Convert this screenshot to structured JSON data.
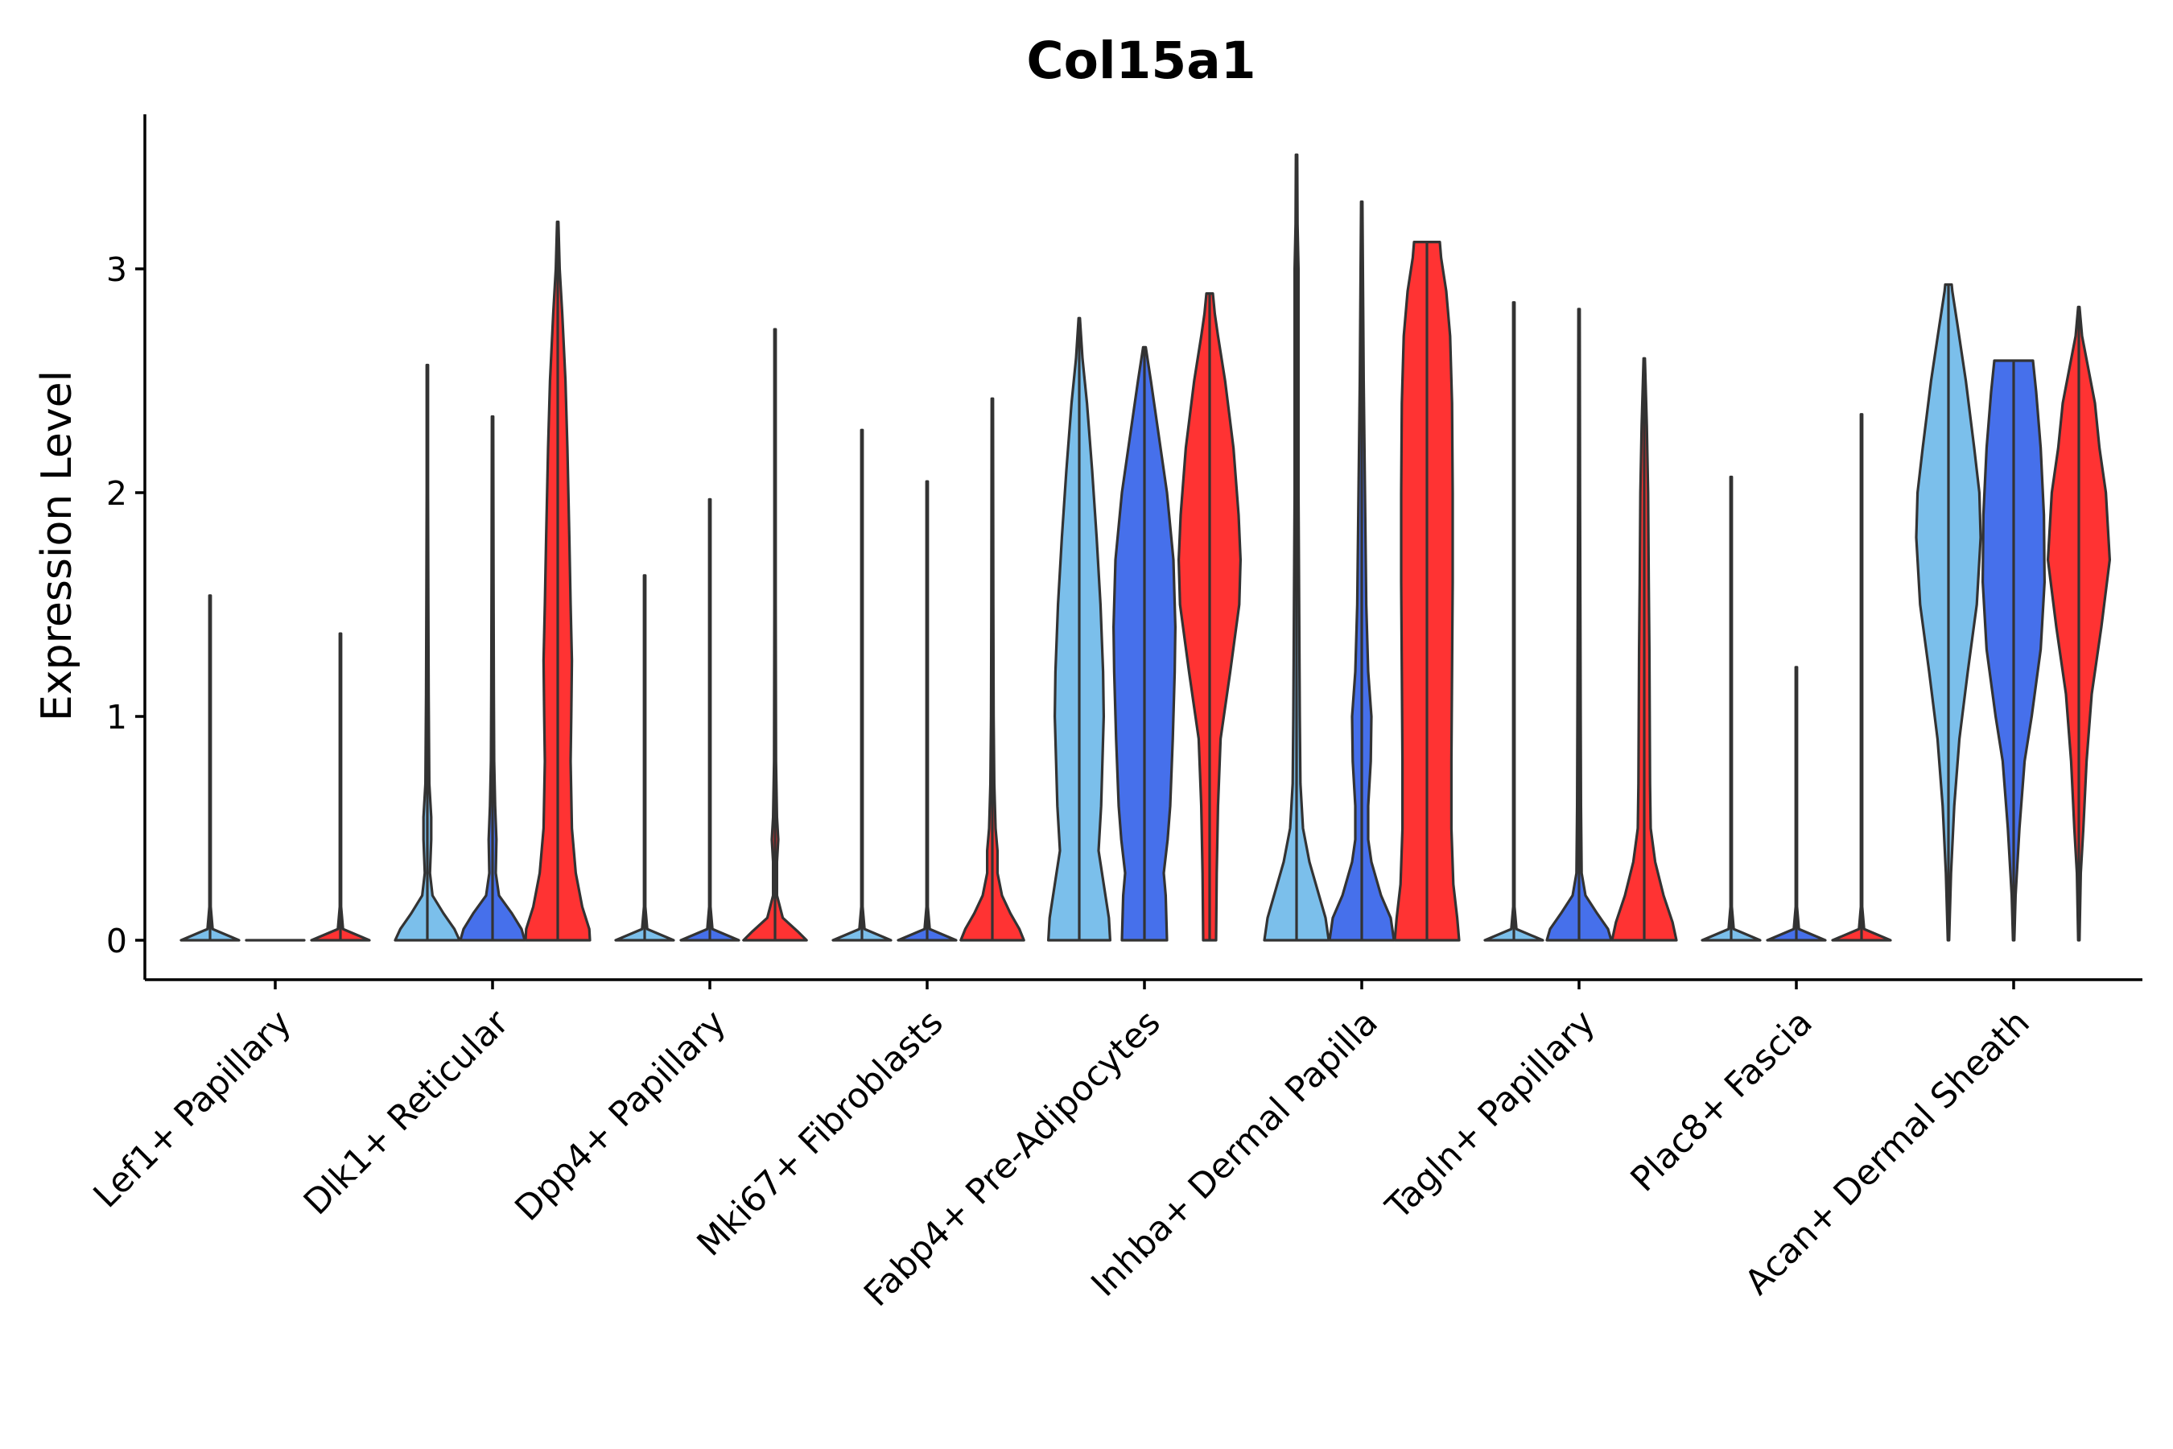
{
  "chart_data": {
    "type": "violin",
    "title": "Col15a1",
    "ylabel": "Expression Level",
    "xlabel": "",
    "ylim": [
      -0.18,
      3.7
    ],
    "yticks": [
      0,
      1,
      2,
      3
    ],
    "legend": "none",
    "groups_per_category": 3,
    "colors": [
      "#7bbfeb",
      "#4670eb",
      "#ff3333"
    ],
    "categories": [
      "Lef1+ Papillary",
      "Dlk1+ Reticular",
      "Dpp4+ Papillary",
      "Mki67+ Fibroblasts",
      "Fabp4+ Pre-Adipocytes",
      "Inhba+ Dermal Papilla",
      "Tagln+ Papillary",
      "Plac8+ Fascia",
      "Acan+ Dermal Sheath"
    ],
    "violins": [
      {
        "category": 0,
        "group": 0,
        "max": 1.54,
        "profile": [
          [
            0,
            0.45
          ],
          [
            0.05,
            0.04
          ],
          [
            0.15,
            0.01
          ],
          [
            1.54,
            0.01
          ]
        ]
      },
      {
        "category": 0,
        "group": 1,
        "max": 0.0,
        "profile": [
          [
            0,
            0.45
          ]
        ]
      },
      {
        "category": 0,
        "group": 2,
        "max": 1.37,
        "profile": [
          [
            0,
            0.45
          ],
          [
            0.05,
            0.04
          ],
          [
            0.15,
            0.01
          ],
          [
            1.37,
            0.01
          ]
        ]
      },
      {
        "category": 1,
        "group": 0,
        "max": 2.57,
        "profile": [
          [
            0,
            0.5
          ],
          [
            0.05,
            0.42
          ],
          [
            0.12,
            0.25
          ],
          [
            0.2,
            0.08
          ],
          [
            0.3,
            0.04
          ],
          [
            0.45,
            0.06
          ],
          [
            0.55,
            0.06
          ],
          [
            0.7,
            0.03
          ],
          [
            0.9,
            0.025
          ],
          [
            1.1,
            0.02
          ],
          [
            1.5,
            0.015
          ],
          [
            2.0,
            0.01
          ],
          [
            2.57,
            0.01
          ]
        ]
      },
      {
        "category": 1,
        "group": 1,
        "max": 2.34,
        "profile": [
          [
            0,
            0.5
          ],
          [
            0.05,
            0.45
          ],
          [
            0.12,
            0.3
          ],
          [
            0.2,
            0.1
          ],
          [
            0.3,
            0.05
          ],
          [
            0.45,
            0.06
          ],
          [
            0.6,
            0.04
          ],
          [
            0.8,
            0.025
          ],
          [
            1.1,
            0.02
          ],
          [
            1.6,
            0.015
          ],
          [
            2.34,
            0.01
          ]
        ]
      },
      {
        "category": 1,
        "group": 2,
        "max": 3.21,
        "profile": [
          [
            0,
            0.5
          ],
          [
            0.05,
            0.49
          ],
          [
            0.15,
            0.38
          ],
          [
            0.3,
            0.28
          ],
          [
            0.5,
            0.22
          ],
          [
            0.8,
            0.2
          ],
          [
            1.0,
            0.21
          ],
          [
            1.25,
            0.22
          ],
          [
            1.5,
            0.2
          ],
          [
            1.8,
            0.18
          ],
          [
            2.2,
            0.15
          ],
          [
            2.5,
            0.12
          ],
          [
            2.8,
            0.07
          ],
          [
            3.0,
            0.03
          ],
          [
            3.21,
            0.01
          ]
        ]
      },
      {
        "category": 2,
        "group": 0,
        "max": 1.63,
        "profile": [
          [
            0,
            0.45
          ],
          [
            0.05,
            0.04
          ],
          [
            0.15,
            0.01
          ],
          [
            1.63,
            0.01
          ]
        ]
      },
      {
        "category": 2,
        "group": 1,
        "max": 1.97,
        "profile": [
          [
            0,
            0.45
          ],
          [
            0.05,
            0.04
          ],
          [
            0.15,
            0.01
          ],
          [
            1.97,
            0.01
          ]
        ]
      },
      {
        "category": 2,
        "group": 2,
        "max": 2.73,
        "profile": [
          [
            0,
            0.49
          ],
          [
            0.04,
            0.35
          ],
          [
            0.1,
            0.12
          ],
          [
            0.2,
            0.03
          ],
          [
            0.35,
            0.03
          ],
          [
            0.45,
            0.05
          ],
          [
            0.55,
            0.03
          ],
          [
            0.8,
            0.015
          ],
          [
            1.5,
            0.01
          ],
          [
            2.73,
            0.01
          ]
        ]
      },
      {
        "category": 3,
        "group": 0,
        "max": 2.28,
        "profile": [
          [
            0,
            0.45
          ],
          [
            0.05,
            0.04
          ],
          [
            0.15,
            0.01
          ],
          [
            2.28,
            0.01
          ]
        ]
      },
      {
        "category": 3,
        "group": 1,
        "max": 2.05,
        "profile": [
          [
            0,
            0.45
          ],
          [
            0.05,
            0.04
          ],
          [
            0.15,
            0.01
          ],
          [
            2.05,
            0.01
          ]
        ]
      },
      {
        "category": 3,
        "group": 2,
        "max": 2.42,
        "profile": [
          [
            0,
            0.49
          ],
          [
            0.05,
            0.42
          ],
          [
            0.12,
            0.28
          ],
          [
            0.2,
            0.15
          ],
          [
            0.3,
            0.08
          ],
          [
            0.4,
            0.08
          ],
          [
            0.5,
            0.05
          ],
          [
            0.7,
            0.03
          ],
          [
            1.0,
            0.02
          ],
          [
            1.5,
            0.015
          ],
          [
            2.42,
            0.01
          ]
        ]
      },
      {
        "category": 4,
        "group": 0,
        "max": 2.78,
        "profile": [
          [
            0,
            0.48
          ],
          [
            0.1,
            0.46
          ],
          [
            0.25,
            0.38
          ],
          [
            0.4,
            0.3
          ],
          [
            0.6,
            0.34
          ],
          [
            0.8,
            0.36
          ],
          [
            1.0,
            0.38
          ],
          [
            1.2,
            0.37
          ],
          [
            1.5,
            0.33
          ],
          [
            1.8,
            0.27
          ],
          [
            2.1,
            0.2
          ],
          [
            2.4,
            0.12
          ],
          [
            2.6,
            0.05
          ],
          [
            2.78,
            0.01
          ]
        ]
      },
      {
        "category": 4,
        "group": 1,
        "max": 2.65,
        "profile": [
          [
            0,
            0.35
          ],
          [
            0.2,
            0.33
          ],
          [
            0.3,
            0.3
          ],
          [
            0.45,
            0.36
          ],
          [
            0.6,
            0.4
          ],
          [
            0.9,
            0.44
          ],
          [
            1.2,
            0.47
          ],
          [
            1.4,
            0.48
          ],
          [
            1.7,
            0.45
          ],
          [
            2.0,
            0.35
          ],
          [
            2.3,
            0.2
          ],
          [
            2.5,
            0.1
          ],
          [
            2.65,
            0.02
          ]
        ]
      },
      {
        "category": 4,
        "group": 2,
        "max": 2.89,
        "profile": [
          [
            0,
            0.1
          ],
          [
            0.3,
            0.11
          ],
          [
            0.6,
            0.13
          ],
          [
            0.9,
            0.17
          ],
          [
            1.2,
            0.32
          ],
          [
            1.5,
            0.46
          ],
          [
            1.7,
            0.48
          ],
          [
            1.9,
            0.45
          ],
          [
            2.2,
            0.37
          ],
          [
            2.5,
            0.24
          ],
          [
            2.7,
            0.13
          ],
          [
            2.8,
            0.08
          ],
          [
            2.89,
            0.05
          ]
        ]
      },
      {
        "category": 5,
        "group": 0,
        "max": 3.51,
        "profile": [
          [
            0,
            0.5
          ],
          [
            0.1,
            0.45
          ],
          [
            0.2,
            0.35
          ],
          [
            0.35,
            0.2
          ],
          [
            0.5,
            0.1
          ],
          [
            0.7,
            0.06
          ],
          [
            1.0,
            0.05
          ],
          [
            1.5,
            0.04
          ],
          [
            2.0,
            0.03
          ],
          [
            2.5,
            0.03
          ],
          [
            3.0,
            0.03
          ],
          [
            3.2,
            0.015
          ],
          [
            3.51,
            0.01
          ]
        ]
      },
      {
        "category": 5,
        "group": 1,
        "max": 3.3,
        "profile": [
          [
            0,
            0.5
          ],
          [
            0.1,
            0.45
          ],
          [
            0.2,
            0.3
          ],
          [
            0.35,
            0.15
          ],
          [
            0.45,
            0.1
          ],
          [
            0.6,
            0.1
          ],
          [
            0.8,
            0.14
          ],
          [
            1.0,
            0.15
          ],
          [
            1.2,
            0.1
          ],
          [
            1.5,
            0.07
          ],
          [
            2.0,
            0.05
          ],
          [
            2.5,
            0.03
          ],
          [
            3.3,
            0.01
          ]
        ]
      },
      {
        "category": 5,
        "group": 2,
        "max": 3.12,
        "profile": [
          [
            0,
            0.5
          ],
          [
            0.1,
            0.47
          ],
          [
            0.25,
            0.41
          ],
          [
            0.5,
            0.38
          ],
          [
            0.8,
            0.38
          ],
          [
            1.2,
            0.39
          ],
          [
            1.6,
            0.4
          ],
          [
            2.0,
            0.4
          ],
          [
            2.4,
            0.39
          ],
          [
            2.7,
            0.36
          ],
          [
            2.9,
            0.3
          ],
          [
            3.05,
            0.22
          ],
          [
            3.12,
            0.2
          ]
        ]
      },
      {
        "category": 6,
        "group": 0,
        "max": 2.85,
        "profile": [
          [
            0,
            0.45
          ],
          [
            0.05,
            0.04
          ],
          [
            0.15,
            0.01
          ],
          [
            2.85,
            0.01
          ]
        ]
      },
      {
        "category": 6,
        "group": 1,
        "max": 2.82,
        "profile": [
          [
            0,
            0.5
          ],
          [
            0.05,
            0.45
          ],
          [
            0.12,
            0.28
          ],
          [
            0.2,
            0.1
          ],
          [
            0.3,
            0.04
          ],
          [
            0.6,
            0.03
          ],
          [
            1.0,
            0.025
          ],
          [
            1.5,
            0.02
          ],
          [
            2.0,
            0.015
          ],
          [
            2.82,
            0.01
          ]
        ]
      },
      {
        "category": 6,
        "group": 2,
        "max": 2.6,
        "profile": [
          [
            0,
            0.5
          ],
          [
            0.08,
            0.44
          ],
          [
            0.2,
            0.3
          ],
          [
            0.35,
            0.17
          ],
          [
            0.5,
            0.1
          ],
          [
            0.7,
            0.09
          ],
          [
            1.0,
            0.085
          ],
          [
            1.3,
            0.08
          ],
          [
            1.6,
            0.07
          ],
          [
            2.0,
            0.06
          ],
          [
            2.3,
            0.04
          ],
          [
            2.5,
            0.02
          ],
          [
            2.6,
            0.01
          ]
        ]
      },
      {
        "category": 7,
        "group": 0,
        "max": 2.07,
        "profile": [
          [
            0,
            0.45
          ],
          [
            0.05,
            0.04
          ],
          [
            0.15,
            0.01
          ],
          [
            2.07,
            0.01
          ]
        ]
      },
      {
        "category": 7,
        "group": 1,
        "max": 1.22,
        "profile": [
          [
            0,
            0.45
          ],
          [
            0.05,
            0.04
          ],
          [
            0.15,
            0.01
          ],
          [
            1.22,
            0.01
          ]
        ]
      },
      {
        "category": 7,
        "group": 2,
        "max": 2.35,
        "profile": [
          [
            0,
            0.45
          ],
          [
            0.05,
            0.04
          ],
          [
            0.15,
            0.01
          ],
          [
            2.35,
            0.01
          ]
        ]
      },
      {
        "category": 8,
        "group": 0,
        "max": 2.93,
        "profile": [
          [
            0,
            0.01
          ],
          [
            0.3,
            0.04
          ],
          [
            0.6,
            0.09
          ],
          [
            0.9,
            0.17
          ],
          [
            1.2,
            0.3
          ],
          [
            1.5,
            0.44
          ],
          [
            1.8,
            0.5
          ],
          [
            2.0,
            0.48
          ],
          [
            2.2,
            0.4
          ],
          [
            2.5,
            0.27
          ],
          [
            2.75,
            0.14
          ],
          [
            2.9,
            0.06
          ],
          [
            2.93,
            0.05
          ]
        ]
      },
      {
        "category": 8,
        "group": 1,
        "max": 2.59,
        "profile": [
          [
            0,
            0.01
          ],
          [
            0.2,
            0.03
          ],
          [
            0.5,
            0.09
          ],
          [
            0.8,
            0.17
          ],
          [
            1.0,
            0.28
          ],
          [
            1.3,
            0.42
          ],
          [
            1.6,
            0.48
          ],
          [
            1.9,
            0.47
          ],
          [
            2.2,
            0.42
          ],
          [
            2.45,
            0.35
          ],
          [
            2.59,
            0.3
          ]
        ]
      },
      {
        "category": 8,
        "group": 2,
        "max": 2.83,
        "profile": [
          [
            0,
            0.01
          ],
          [
            0.3,
            0.03
          ],
          [
            0.5,
            0.07
          ],
          [
            0.8,
            0.12
          ],
          [
            1.1,
            0.2
          ],
          [
            1.4,
            0.35
          ],
          [
            1.7,
            0.48
          ],
          [
            2.0,
            0.42
          ],
          [
            2.2,
            0.32
          ],
          [
            2.4,
            0.25
          ],
          [
            2.55,
            0.15
          ],
          [
            2.7,
            0.05
          ],
          [
            2.83,
            0.01
          ]
        ]
      }
    ]
  }
}
